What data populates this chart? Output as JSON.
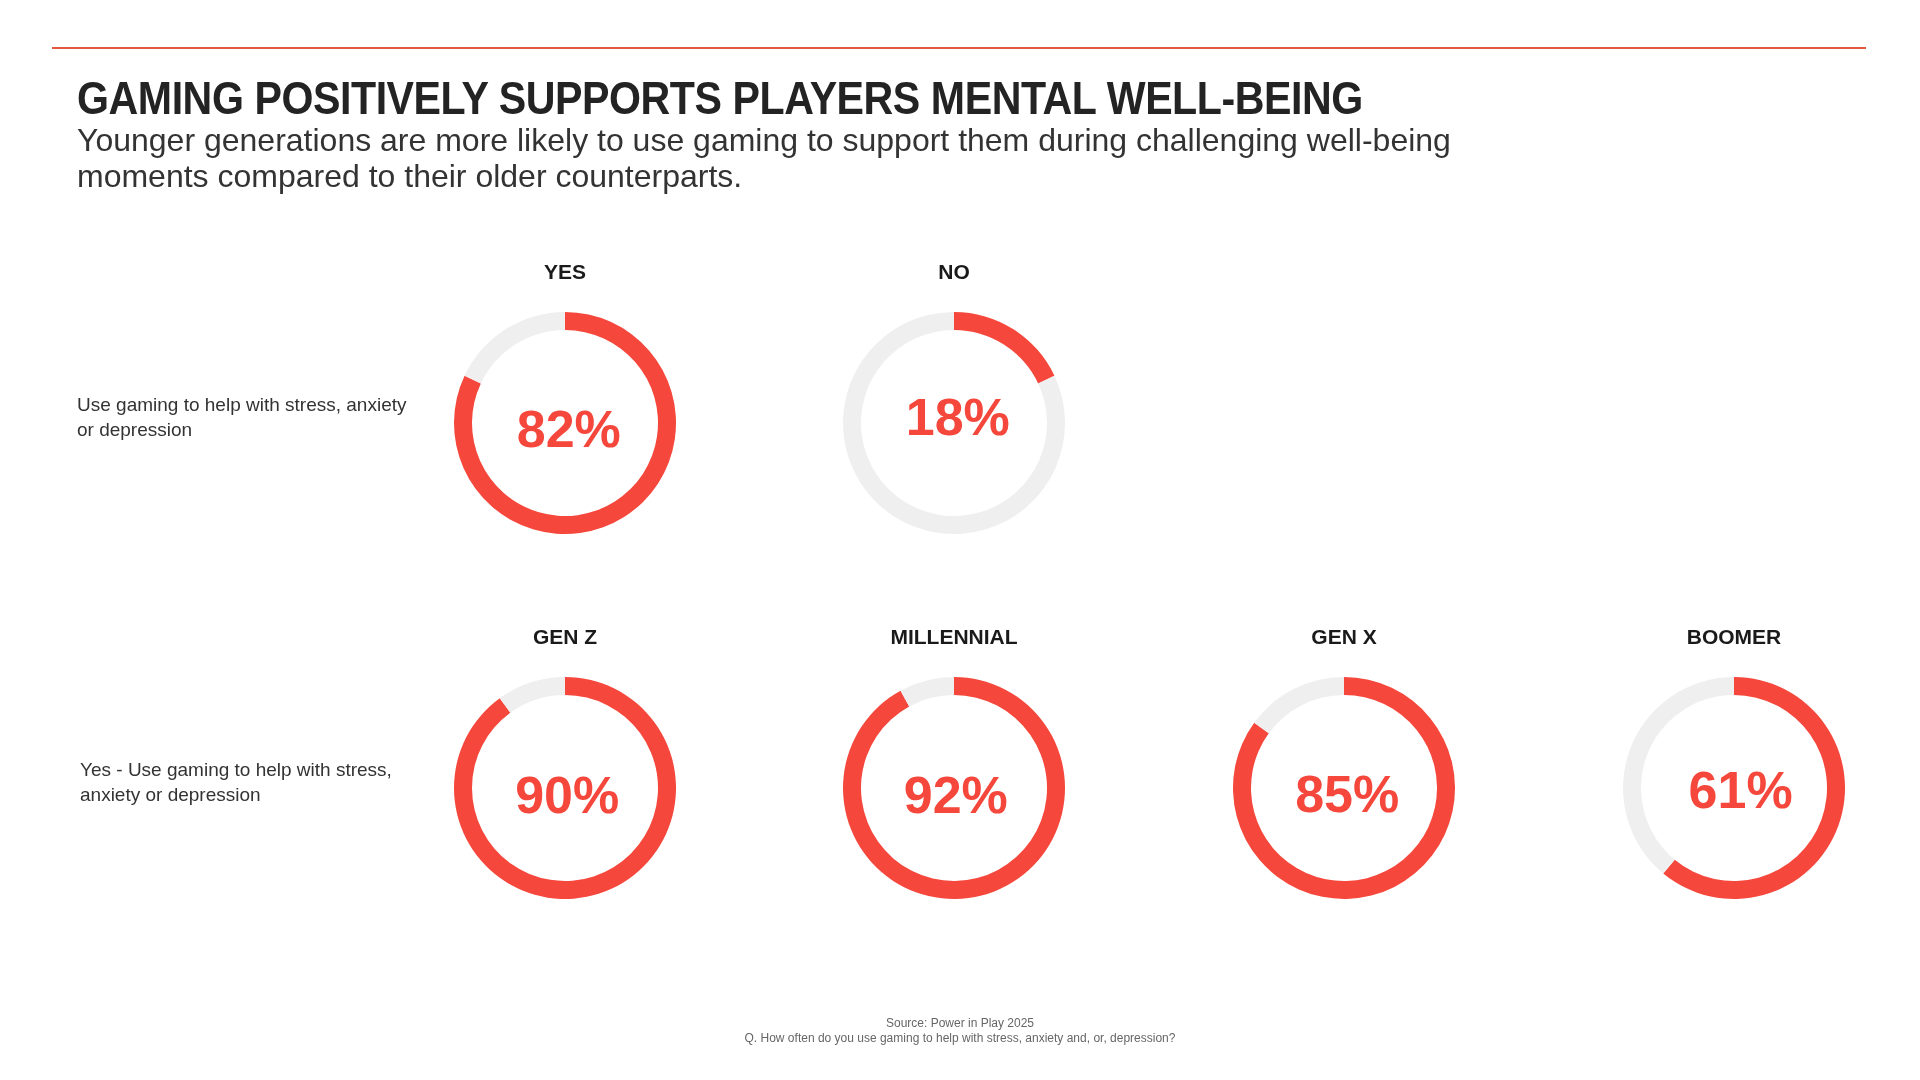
{
  "chart_data": [
    {
      "type": "other",
      "title": "GAMING POSITIVELY SUPPORTS PLAYERS MENTAL WELL-BEING",
      "subtitle": "Younger generations are more likely to use gaming to support them during challenging well-being moments compared to their older counterparts."
    },
    {
      "type": "donut",
      "title": "YES",
      "categories": [
        null,
        null
      ],
      "values": [
        82,
        18
      ],
      "colors": [
        "#f5473b",
        "#efefef"
      ],
      "value_labels": [
        "82%",
        null
      ],
      "annotations": [
        "Use gaming to help with stress, anxiety or depression"
      ]
    },
    {
      "type": "donut",
      "title": "NO",
      "categories": [
        null,
        null
      ],
      "values": [
        18,
        82
      ],
      "colors": [
        "#f5473b",
        "#efefef"
      ],
      "value_labels": [
        "18%",
        null
      ]
    },
    {
      "type": "donut",
      "title": "GEN Z",
      "categories": [
        null,
        null
      ],
      "values": [
        90,
        10
      ],
      "colors": [
        "#f5473b",
        "#efefef"
      ],
      "value_labels": [
        "90%",
        null
      ],
      "annotations": [
        "Yes - Use gaming to help with stress, anxiety or depression"
      ]
    },
    {
      "type": "donut",
      "title": "MILLENNIAL",
      "categories": [
        null,
        null
      ],
      "values": [
        92,
        8
      ],
      "colors": [
        "#f5473b",
        "#efefef"
      ],
      "value_labels": [
        "92%",
        null
      ]
    },
    {
      "type": "donut",
      "title": "GEN X",
      "categories": [
        null,
        null
      ],
      "values": [
        85,
        15
      ],
      "colors": [
        "#f5473b",
        "#efefef"
      ],
      "value_labels": [
        "85%",
        null
      ]
    },
    {
      "type": "donut",
      "title": "BOOMER",
      "categories": [
        null,
        null
      ],
      "values": [
        61,
        39
      ],
      "colors": [
        "#f5473b",
        "#efefef"
      ],
      "value_labels": [
        "61%",
        null
      ]
    },
    {
      "type": "other",
      "annotations": [
        "Source: Power in Play 2025",
        "Q. How often do you use gaming to help with stress, anxiety and, or, depression?"
      ]
    }
  ]
}
